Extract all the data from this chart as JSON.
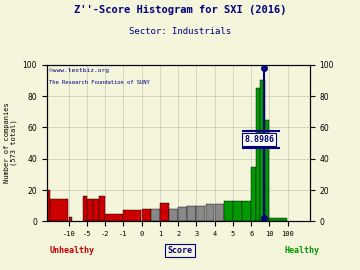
{
  "title": "Z''-Score Histogram for SXI (2016)",
  "subtitle": "Sector: Industrials",
  "watermark1": "©www.textbiz.org",
  "watermark2": "The Research Foundation of SUNY",
  "sxi_score": 8.8986,
  "sxi_score_str": "8.8986",
  "background_color": "#f5f5dc",
  "grid_color": "#999999",
  "title_color": "#000080",
  "subtitle_color": "#000080",
  "watermark_color": "#000080",
  "unhealthy_color": "#cc0000",
  "healthy_color": "#009900",
  "score_label_color": "#000080",
  "marker_color": "#000080",
  "tick_positions": [
    -10,
    -5,
    -2,
    -1,
    0,
    1,
    2,
    3,
    4,
    5,
    6,
    10,
    100
  ],
  "bars": [
    [
      -12,
      -11,
      20,
      "#cc0000"
    ],
    [
      -11,
      -10,
      14,
      "#cc0000"
    ],
    [
      -10,
      -9,
      3,
      "#cc0000"
    ],
    [
      -6,
      -5,
      16,
      "#cc0000"
    ],
    [
      -5,
      -4,
      14,
      "#cc0000"
    ],
    [
      -4,
      -3,
      14,
      "#cc0000"
    ],
    [
      -3,
      -2,
      16,
      "#cc0000"
    ],
    [
      -2,
      -1,
      5,
      "#cc0000"
    ],
    [
      -1,
      0,
      7,
      "#cc0000"
    ],
    [
      0,
      0.5,
      8,
      "#cc0000"
    ],
    [
      0.5,
      1,
      8,
      "#888888"
    ],
    [
      1,
      1.5,
      12,
      "#cc0000"
    ],
    [
      1.5,
      2,
      8,
      "#888888"
    ],
    [
      2,
      2.5,
      9,
      "#888888"
    ],
    [
      2.5,
      3,
      10,
      "#888888"
    ],
    [
      3,
      3.5,
      10,
      "#888888"
    ],
    [
      3.5,
      4,
      11,
      "#888888"
    ],
    [
      4,
      4.5,
      11,
      "#888888"
    ],
    [
      4.5,
      5,
      13,
      "#009900"
    ],
    [
      5,
      5.5,
      13,
      "#009900"
    ],
    [
      5.5,
      6,
      13,
      "#009900"
    ],
    [
      6,
      7,
      35,
      "#009900"
    ],
    [
      7,
      8,
      85,
      "#009900"
    ],
    [
      8,
      9,
      90,
      "#009900"
    ],
    [
      9,
      10,
      65,
      "#009900"
    ],
    [
      10,
      101,
      2,
      "#009900"
    ]
  ],
  "ylim": [
    0,
    100
  ],
  "yticks": [
    0,
    20,
    40,
    60,
    80,
    100
  ]
}
